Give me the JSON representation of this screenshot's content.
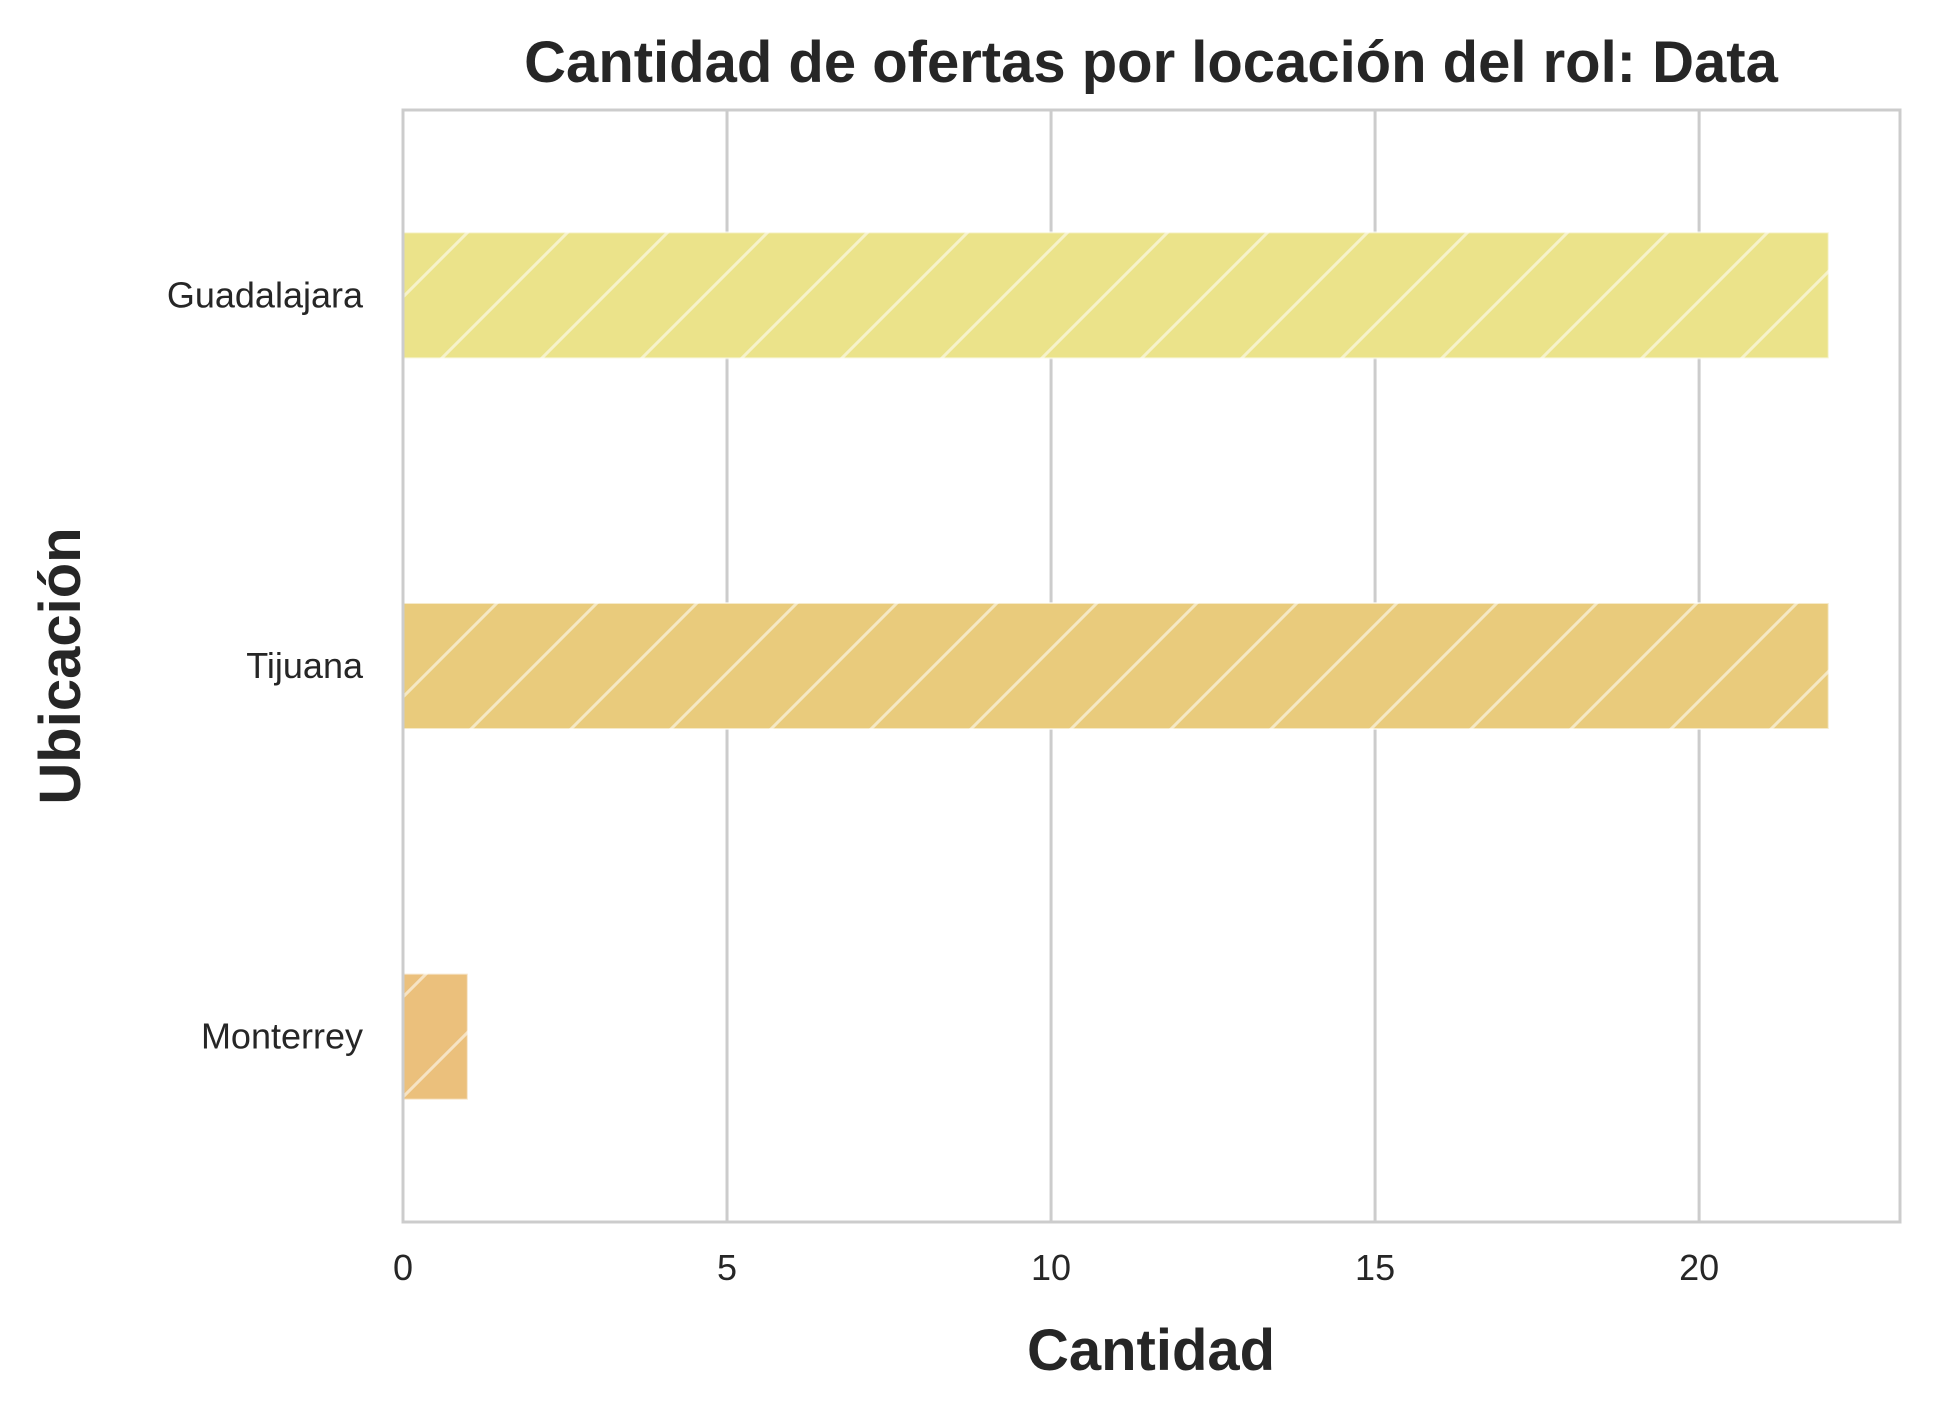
{
  "chart_data": {
    "type": "bar",
    "orientation": "horizontal",
    "title": "Cantidad de ofertas por locación del rol: Data",
    "xlabel": "Cantidad",
    "ylabel": "Ubicación",
    "categories": [
      "Guadalajara",
      "Tijuana",
      "Monterrey"
    ],
    "values": [
      22,
      22,
      1
    ],
    "xlim": [
      0,
      23.1
    ],
    "xticks": [
      0,
      5,
      10,
      15,
      20
    ],
    "xtick_labels": [
      "0",
      "5",
      "10",
      "15",
      "20"
    ],
    "grid": "vertical",
    "hatch": "diagonal",
    "colors": {
      "bars": [
        "#ebe38a",
        "#e9cb7c",
        "#ebc07c"
      ],
      "grid": "#cccccc",
      "frame": "#cccccc",
      "text": "#262626"
    }
  }
}
